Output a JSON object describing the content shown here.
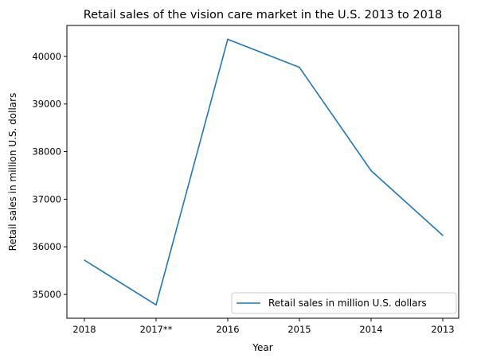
{
  "chart_data": {
    "type": "line",
    "title": "Retail sales of the vision care market in the U.S. 2013 to 2018",
    "xlabel": "Year",
    "ylabel": "Retail sales in million U.S. dollars",
    "categories": [
      "2018",
      "2017**",
      "2016",
      "2015",
      "2014",
      "2013"
    ],
    "series": [
      {
        "name": "Retail sales in million U.S. dollars",
        "values": [
          35720,
          34780,
          40360,
          39770,
          37600,
          36240
        ],
        "color": "#1f77b4"
      }
    ],
    "yticks": [
      35000,
      36000,
      37000,
      38000,
      39000,
      40000
    ],
    "ylim": [
      34500,
      40650
    ],
    "grid": false,
    "legend": "lower-right"
  }
}
